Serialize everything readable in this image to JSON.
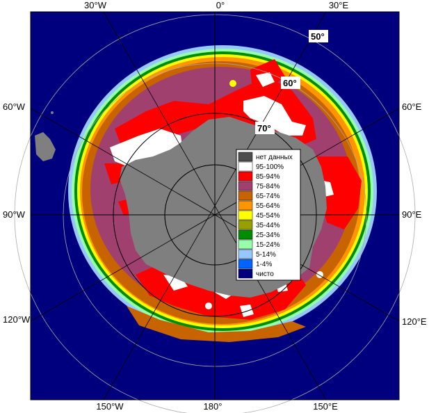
{
  "map": {
    "longitude_labels": {
      "top": [
        "30°W",
        "0°",
        "30°E"
      ],
      "left": [
        "60°W",
        "90°W",
        "120°W"
      ],
      "right": [
        "60°E",
        "90°E",
        "120°E"
      ],
      "bottom": [
        "150°W",
        "180°",
        "150°E"
      ]
    },
    "latitude_labels": [
      "50°",
      "60°",
      "70°"
    ],
    "colors": {
      "ocean": "#00007f",
      "land": "#7f7f7f",
      "nodata": "#4d4d4d"
    }
  },
  "legend": {
    "items": [
      {
        "label": "нет данных",
        "color": "#4d4d4d"
      },
      {
        "label": "95-100%",
        "color": "#ffffff"
      },
      {
        "label": "85-94%",
        "color": "#ff0000"
      },
      {
        "label": "75-84%",
        "color": "#a0406e"
      },
      {
        "label": "65-74%",
        "color": "#c86400"
      },
      {
        "label": "55-64%",
        "color": "#ff9600"
      },
      {
        "label": "45-54%",
        "color": "#ffff00"
      },
      {
        "label": "35-44%",
        "color": "#96a000"
      },
      {
        "label": "25-34%",
        "color": "#008c00"
      },
      {
        "label": "15-24%",
        "color": "#96ffaa"
      },
      {
        "label": "5-14%",
        "color": "#96c8ff"
      },
      {
        "label": "1-4%",
        "color": "#0064ff"
      },
      {
        "label": "чисто",
        "color": "#00007f"
      }
    ]
  }
}
